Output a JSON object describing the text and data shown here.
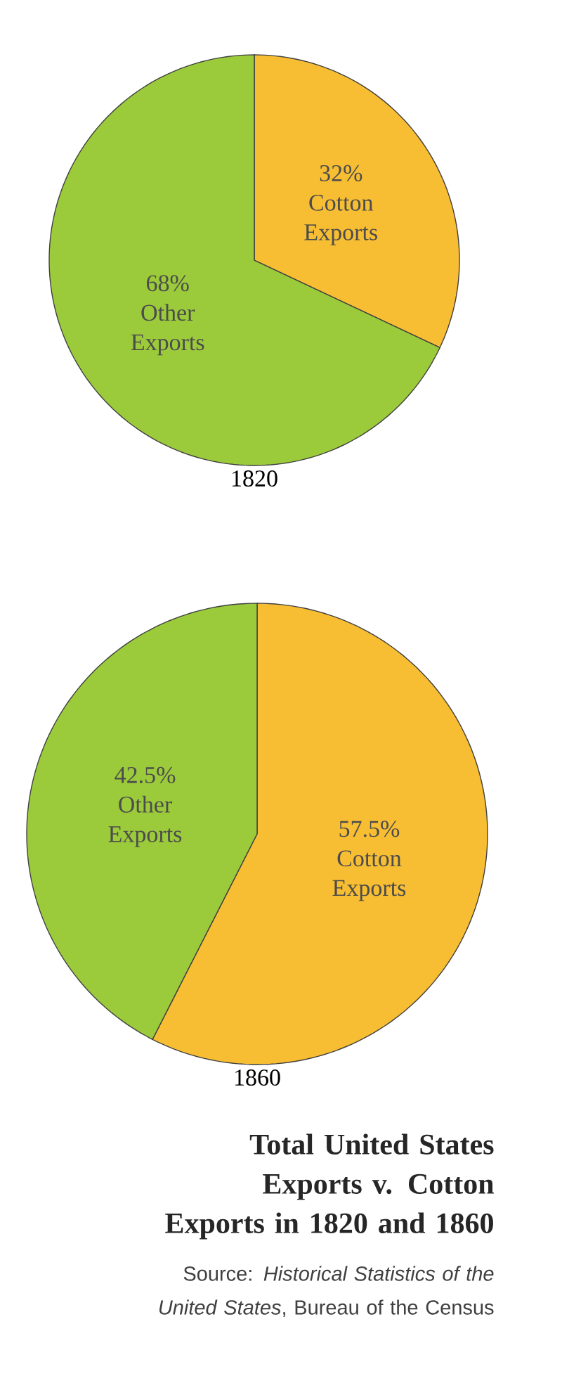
{
  "chart_data": [
    {
      "type": "pie",
      "title": "1820",
      "categories": [
        "Cotton Exports",
        "Other Exports"
      ],
      "values": [
        32,
        68
      ],
      "value_labels": [
        "32%",
        "68%"
      ],
      "colors": [
        "#f8be33",
        "#9bcb3b"
      ]
    },
    {
      "type": "pie",
      "title": "1860",
      "categories": [
        "Cotton Exports",
        "Other Exports"
      ],
      "values": [
        57.5,
        42.5
      ],
      "value_labels": [
        "57.5%",
        "42.5%"
      ],
      "colors": [
        "#f8be33",
        "#9bcb3b"
      ]
    },
    {
      "type": "other",
      "title": "Total United States Exports v. Cotton Exports in 1820 and 1860",
      "annotations": [
        "Source: *Historical Statistics of the United States*, Bureau of the Census"
      ]
    }
  ]
}
